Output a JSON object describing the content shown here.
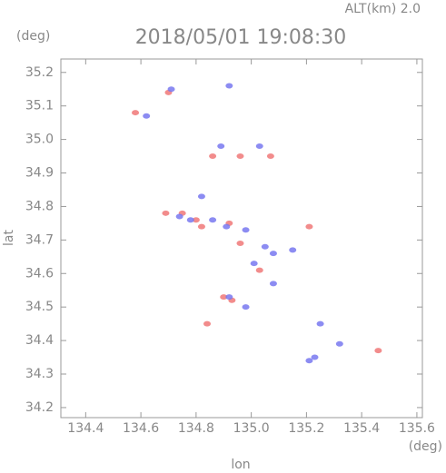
{
  "chart_data": {
    "type": "scatter",
    "title": "2018/05/01 19:08:30",
    "annotation": "ALT(km) 2.0",
    "y_unit": "(deg)",
    "x_unit": "(deg)",
    "xlabel": "lon",
    "ylabel": "lat",
    "xlim": [
      134.31,
      135.62
    ],
    "ylim": [
      34.17,
      35.24
    ],
    "xticks": [
      134.4,
      134.6,
      134.8,
      {
        "value": 135,
        "label": "135.0"
      },
      135.2,
      135.4,
      135.6
    ],
    "yticks": [
      34.2,
      34.3,
      34.4,
      34.5,
      34.6,
      34.7,
      34.8,
      34.9,
      {
        "value": 35,
        "label": "35.0"
      },
      35.1,
      35.2
    ],
    "series": [
      {
        "color": "#f07878",
        "x": [
          134.58,
          134.7,
          134.86,
          134.96,
          135.07,
          134.75,
          134.8,
          134.82,
          134.92,
          134.96,
          135.03,
          134.93,
          134.9,
          135.21,
          134.84,
          135.46,
          134.69
        ],
        "values": [
          35.08,
          35.14,
          34.95,
          34.95,
          34.95,
          34.78,
          34.76,
          34.74,
          34.75,
          34.69,
          34.61,
          34.52,
          34.53,
          34.74,
          34.45,
          34.37,
          34.78
        ]
      },
      {
        "color": "#7878f0",
        "x": [
          134.62,
          134.71,
          134.92,
          134.89,
          134.82,
          134.78,
          134.86,
          134.91,
          134.98,
          135.05,
          135.08,
          135.01,
          135.08,
          134.92,
          134.98,
          135.25,
          135.23,
          135.21,
          135.32,
          135.03,
          134.74,
          135.15
        ],
        "values": [
          35.07,
          35.15,
          35.16,
          34.98,
          34.83,
          34.76,
          34.76,
          34.74,
          34.73,
          34.68,
          34.66,
          34.63,
          34.57,
          34.53,
          34.5,
          34.45,
          34.35,
          34.34,
          34.39,
          34.98,
          34.77,
          34.67
        ]
      }
    ]
  }
}
